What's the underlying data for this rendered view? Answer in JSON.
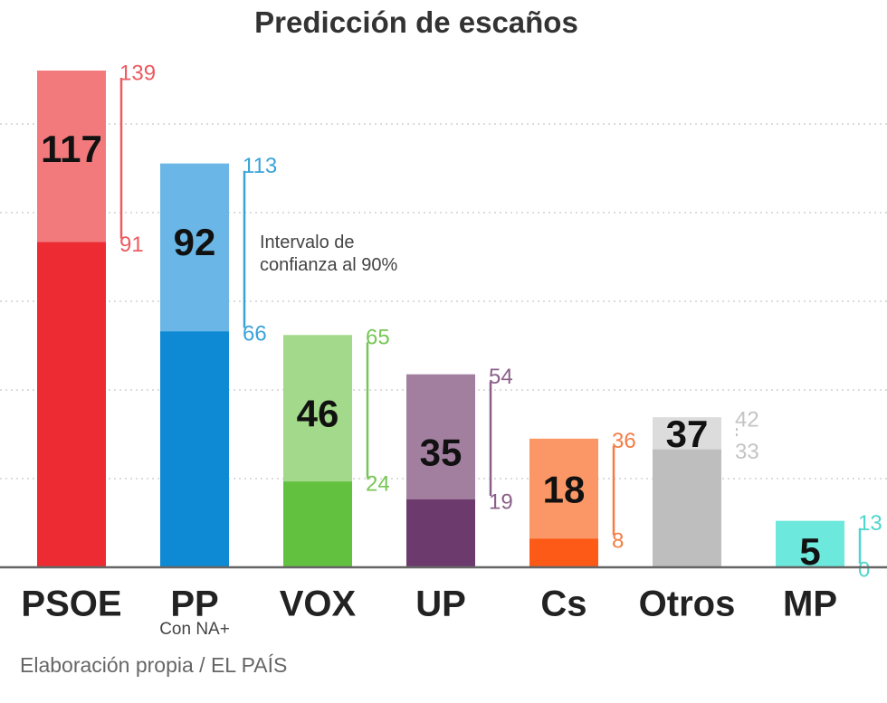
{
  "chart_data": {
    "type": "bar",
    "title": "Predicción de escaños",
    "categories": [
      "PSOE",
      "PP",
      "VOX",
      "UP",
      "Cs",
      "Otros",
      "MP"
    ],
    "sublabels": [
      "",
      "Con NA+",
      "",
      "",
      "",
      "",
      ""
    ],
    "series": [
      {
        "name": "predicción",
        "values": [
          117,
          92,
          46,
          35,
          18,
          37,
          5
        ]
      },
      {
        "name": "intervalo_min",
        "values": [
          91,
          66,
          24,
          19,
          8,
          33,
          0
        ]
      },
      {
        "name": "intervalo_max",
        "values": [
          139,
          113,
          65,
          54,
          36,
          42,
          13
        ]
      }
    ],
    "colors_light": [
      "#f27a7d",
      "#6ab6e6",
      "#a3d98b",
      "#a27f9f",
      "#fb9766",
      "#dcdcdc",
      "#6de8dc"
    ],
    "colors_dark": [
      "#ec2b33",
      "#0e8ad4",
      "#62c240",
      "#6d3a6e",
      "#fc5a16",
      "#bebebe",
      "#6de8dc"
    ],
    "colors_text": [
      "#ec5b60",
      "#3aa3d8",
      "#77c656",
      "#8a5f89",
      "#f47d45",
      "#c4c4c4",
      "#4fd6cc"
    ],
    "annotation": [
      "Intervalo de",
      "confianza al 90%"
    ],
    "ylim": [
      0,
      139
    ],
    "grid": true,
    "xlabel": "",
    "ylabel": ""
  },
  "source": "Elaboración propia / EL PAÍS"
}
